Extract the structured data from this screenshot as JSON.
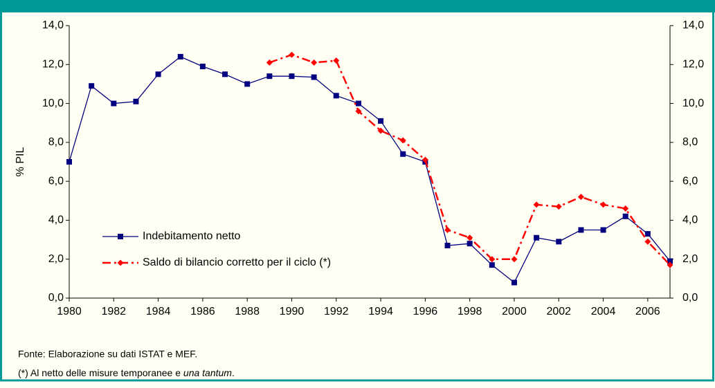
{
  "chart_data": {
    "type": "line",
    "y_label": "% PIL",
    "x": [
      1980,
      1981,
      1982,
      1983,
      1984,
      1985,
      1986,
      1987,
      1988,
      1989,
      1990,
      1991,
      1992,
      1993,
      1994,
      1995,
      1996,
      1997,
      1998,
      1999,
      2000,
      2001,
      2002,
      2003,
      2004,
      2005,
      2006,
      2007
    ],
    "xlim": [
      1980,
      2007
    ],
    "xticks": [
      1980,
      1982,
      1984,
      1986,
      1988,
      1990,
      1992,
      1994,
      1996,
      1998,
      2000,
      2002,
      2004,
      2006
    ],
    "ylim": [
      0,
      14
    ],
    "yticks": [
      {
        "value": 0,
        "label": "0,0"
      },
      {
        "value": 2,
        "label": "2,0"
      },
      {
        "value": 4,
        "label": "4,0"
      },
      {
        "value": 6,
        "label": "6,0"
      },
      {
        "value": 8,
        "label": "8,0"
      },
      {
        "value": 10,
        "label": "10,0"
      },
      {
        "value": 12,
        "label": "12,0"
      },
      {
        "value": 14,
        "label": "14,0"
      }
    ],
    "y2lim": [
      0,
      14
    ],
    "y2ticks": [
      {
        "value": 0,
        "label": "0,0"
      },
      {
        "value": 2,
        "label": "2,0"
      },
      {
        "value": 4,
        "label": "4,0"
      },
      {
        "value": 6,
        "label": "6,0"
      },
      {
        "value": 8,
        "label": "8,0"
      },
      {
        "value": 10,
        "label": "10,0"
      },
      {
        "value": 12,
        "label": "12,0"
      },
      {
        "value": 14,
        "label": "14,0"
      }
    ],
    "series": [
      {
        "name": "Indebitamento netto",
        "color": "#000080",
        "marker": "square",
        "dash": false,
        "values": [
          7.0,
          10.9,
          10.0,
          10.1,
          11.5,
          12.4,
          11.9,
          11.5,
          11.0,
          11.4,
          11.4,
          11.35,
          10.4,
          10.0,
          9.1,
          7.4,
          7.0,
          2.7,
          2.8,
          1.7,
          0.8,
          3.1,
          2.9,
          3.5,
          3.5,
          4.2,
          3.3,
          1.9
        ]
      },
      {
        "name": "Saldo di bilancio corretto per il ciclo (*)",
        "color": "#ff0000",
        "marker": "diamond",
        "dash": true,
        "values": [
          null,
          null,
          null,
          null,
          null,
          null,
          null,
          null,
          null,
          12.1,
          12.5,
          12.1,
          12.2,
          9.6,
          8.6,
          8.1,
          7.1,
          3.5,
          3.1,
          2.0,
          2.0,
          4.8,
          4.7,
          5.2,
          4.8,
          4.6,
          2.9,
          1.7
        ]
      }
    ],
    "notes": [
      "Fonte: Elaborazione su dati ISTAT e MEF.",
      [
        "(*) Al netto delle misure temporanee e ",
        "una tantum",
        "."
      ]
    ]
  }
}
